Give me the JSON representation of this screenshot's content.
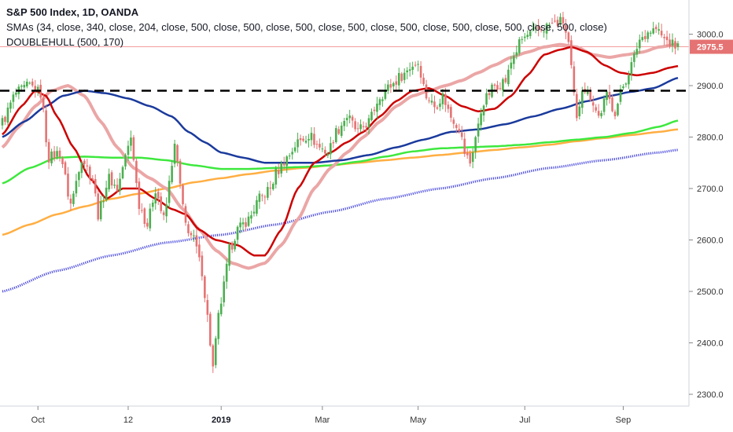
{
  "legend": {
    "title": "S&P 500 Index, 1D, OANDA",
    "line2": "SMAs (34, close, 340, close, 204, close, 500, close, 500, close, 500, close, 500, close, 500, close, 500, close, 500, close, 500, close)",
    "line3": "DOUBLEHULL (500, 170)"
  },
  "colors": {
    "up": "#4caf50",
    "down": "#e57373",
    "sma_red": "#cc0000",
    "sma_pink": "#eba6a6",
    "sma_navy": "#1a3a9c",
    "sma_green": "#3ee83e",
    "sma_orange": "#ffae42",
    "hull_blue": "#4a4adb",
    "price_line": "#f28c8c",
    "last_label_bg": "#e57373"
  },
  "chart_data": {
    "type": "candlestick",
    "y_axis_ticks": [
      "3000.0",
      "2900.0",
      "2800.0",
      "2700.0",
      "2600.0",
      "2500.0",
      "2400.0",
      "2300.0"
    ],
    "ylim": [
      2285,
      3050
    ],
    "x_axis_ticks": [
      {
        "label": "Oct",
        "index": 13,
        "bold": false
      },
      {
        "label": "12",
        "index": 46,
        "bold": false
      },
      {
        "label": "2019",
        "index": 80,
        "bold": true
      },
      {
        "label": "Mar",
        "index": 117,
        "bold": false
      },
      {
        "label": "May",
        "index": 152,
        "bold": false
      },
      {
        "label": "Jul",
        "index": 191,
        "bold": false
      },
      {
        "label": "Sep",
        "index": 227,
        "bold": false
      }
    ],
    "last_price": "2975.5",
    "support_level": 2890,
    "anchors": [
      [
        0,
        2830
      ],
      [
        5,
        2885
      ],
      [
        10,
        2900
      ],
      [
        14,
        2885
      ],
      [
        17,
        2760
      ],
      [
        21,
        2770
      ],
      [
        25,
        2670
      ],
      [
        29,
        2760
      ],
      [
        33,
        2720
      ],
      [
        35,
        2650
      ],
      [
        39,
        2720
      ],
      [
        42,
        2700
      ],
      [
        45,
        2760
      ],
      [
        47,
        2800
      ],
      [
        50,
        2670
      ],
      [
        53,
        2630
      ],
      [
        56,
        2700
      ],
      [
        59,
        2640
      ],
      [
        63,
        2780
      ],
      [
        67,
        2630
      ],
      [
        70,
        2600
      ],
      [
        73,
        2540
      ],
      [
        75,
        2450
      ],
      [
        77,
        2350
      ],
      [
        79,
        2450
      ],
      [
        81,
        2510
      ],
      [
        83,
        2580
      ],
      [
        86,
        2620
      ],
      [
        90,
        2640
      ],
      [
        94,
        2680
      ],
      [
        98,
        2700
      ],
      [
        100,
        2730
      ],
      [
        104,
        2760
      ],
      [
        108,
        2790
      ],
      [
        112,
        2805
      ],
      [
        116,
        2780
      ],
      [
        119,
        2770
      ],
      [
        122,
        2810
      ],
      [
        126,
        2840
      ],
      [
        130,
        2810
      ],
      [
        134,
        2830
      ],
      [
        138,
        2880
      ],
      [
        142,
        2900
      ],
      [
        146,
        2920
      ],
      [
        150,
        2940
      ],
      [
        152,
        2945
      ],
      [
        155,
        2880
      ],
      [
        158,
        2860
      ],
      [
        161,
        2880
      ],
      [
        164,
        2840
      ],
      [
        167,
        2820
      ],
      [
        169,
        2770
      ],
      [
        171,
        2750
      ],
      [
        173,
        2800
      ],
      [
        176,
        2870
      ],
      [
        180,
        2900
      ],
      [
        184,
        2910
      ],
      [
        187,
        2960
      ],
      [
        190,
        2990
      ],
      [
        193,
        3000
      ],
      [
        197,
        3010
      ],
      [
        201,
        3020
      ],
      [
        205,
        3025
      ],
      [
        207,
        2980
      ],
      [
        209,
        2880
      ],
      [
        210,
        2830
      ],
      [
        212,
        2900
      ],
      [
        215,
        2880
      ],
      [
        218,
        2840
      ],
      [
        221,
        2880
      ],
      [
        224,
        2850
      ],
      [
        227,
        2900
      ],
      [
        230,
        2940
      ],
      [
        233,
        2990
      ],
      [
        236,
        3005
      ],
      [
        239,
        3010
      ],
      [
        242,
        2990
      ],
      [
        245,
        2980
      ],
      [
        247,
        2975.5
      ]
    ],
    "sma_red_anchors": [
      [
        0,
        2805
      ],
      [
        7,
        2860
      ],
      [
        12,
        2890
      ],
      [
        16,
        2880
      ],
      [
        20,
        2840
      ],
      [
        26,
        2780
      ],
      [
        32,
        2720
      ],
      [
        38,
        2680
      ],
      [
        44,
        2700
      ],
      [
        50,
        2700
      ],
      [
        56,
        2680
      ],
      [
        62,
        2660
      ],
      [
        67,
        2650
      ],
      [
        72,
        2620
      ],
      [
        78,
        2600
      ],
      [
        86,
        2590
      ],
      [
        92,
        2570
      ],
      [
        96,
        2570
      ],
      [
        102,
        2620
      ],
      [
        108,
        2700
      ],
      [
        114,
        2750
      ],
      [
        120,
        2770
      ],
      [
        126,
        2790
      ],
      [
        132,
        2810
      ],
      [
        138,
        2840
      ],
      [
        144,
        2870
      ],
      [
        150,
        2890
      ],
      [
        156,
        2895
      ],
      [
        162,
        2880
      ],
      [
        168,
        2860
      ],
      [
        174,
        2850
      ],
      [
        180,
        2855
      ],
      [
        186,
        2880
      ],
      [
        192,
        2920
      ],
      [
        198,
        2960
      ],
      [
        204,
        2970
      ],
      [
        208,
        2975
      ],
      [
        214,
        2965
      ],
      [
        220,
        2940
      ],
      [
        226,
        2925
      ],
      [
        232,
        2920
      ],
      [
        238,
        2925
      ],
      [
        244,
        2935
      ],
      [
        247,
        2938
      ]
    ],
    "sma_pink_anchors": [
      [
        0,
        2780
      ],
      [
        6,
        2820
      ],
      [
        12,
        2860
      ],
      [
        18,
        2890
      ],
      [
        24,
        2900
      ],
      [
        30,
        2880
      ],
      [
        36,
        2830
      ],
      [
        42,
        2780
      ],
      [
        48,
        2740
      ],
      [
        54,
        2720
      ],
      [
        60,
        2700
      ],
      [
        66,
        2660
      ],
      [
        72,
        2620
      ],
      [
        78,
        2580
      ],
      [
        84,
        2555
      ],
      [
        90,
        2545
      ],
      [
        96,
        2555
      ],
      [
        102,
        2590
      ],
      [
        108,
        2640
      ],
      [
        114,
        2700
      ],
      [
        120,
        2740
      ],
      [
        126,
        2770
      ],
      [
        132,
        2800
      ],
      [
        138,
        2830
      ],
      [
        144,
        2860
      ],
      [
        150,
        2880
      ],
      [
        156,
        2890
      ],
      [
        162,
        2900
      ],
      [
        168,
        2910
      ],
      [
        174,
        2925
      ],
      [
        180,
        2940
      ],
      [
        186,
        2955
      ],
      [
        192,
        2965
      ],
      [
        198,
        2975
      ],
      [
        204,
        2980
      ],
      [
        210,
        2975
      ],
      [
        216,
        2960
      ],
      [
        222,
        2955
      ],
      [
        228,
        2960
      ],
      [
        234,
        2965
      ],
      [
        240,
        2975
      ],
      [
        247,
        2980
      ]
    ],
    "sma_navy_anchors": [
      [
        0,
        2800
      ],
      [
        8,
        2830
      ],
      [
        16,
        2860
      ],
      [
        22,
        2880
      ],
      [
        30,
        2890
      ],
      [
        38,
        2885
      ],
      [
        46,
        2875
      ],
      [
        54,
        2860
      ],
      [
        62,
        2840
      ],
      [
        68,
        2810
      ],
      [
        74,
        2790
      ],
      [
        80,
        2770
      ],
      [
        88,
        2760
      ],
      [
        96,
        2750
      ],
      [
        104,
        2750
      ],
      [
        114,
        2750
      ],
      [
        124,
        2755
      ],
      [
        134,
        2765
      ],
      [
        144,
        2780
      ],
      [
        154,
        2795
      ],
      [
        164,
        2810
      ],
      [
        174,
        2815
      ],
      [
        184,
        2825
      ],
      [
        194,
        2840
      ],
      [
        204,
        2855
      ],
      [
        214,
        2870
      ],
      [
        222,
        2880
      ],
      [
        230,
        2888
      ],
      [
        238,
        2895
      ],
      [
        247,
        2915
      ]
    ],
    "sma_green_anchors": [
      [
        0,
        2710
      ],
      [
        10,
        2740
      ],
      [
        20,
        2760
      ],
      [
        30,
        2762
      ],
      [
        40,
        2760
      ],
      [
        50,
        2760
      ],
      [
        60,
        2755
      ],
      [
        70,
        2745
      ],
      [
        80,
        2738
      ],
      [
        90,
        2738
      ],
      [
        100,
        2740
      ],
      [
        110,
        2742
      ],
      [
        120,
        2745
      ],
      [
        130,
        2752
      ],
      [
        140,
        2762
      ],
      [
        150,
        2772
      ],
      [
        160,
        2778
      ],
      [
        170,
        2780
      ],
      [
        180,
        2782
      ],
      [
        190,
        2785
      ],
      [
        200,
        2790
      ],
      [
        210,
        2795
      ],
      [
        220,
        2800
      ],
      [
        230,
        2808
      ],
      [
        240,
        2820
      ],
      [
        247,
        2832
      ]
    ],
    "sma_orange_anchors": [
      [
        0,
        2610
      ],
      [
        10,
        2630
      ],
      [
        20,
        2650
      ],
      [
        30,
        2665
      ],
      [
        40,
        2680
      ],
      [
        50,
        2690
      ],
      [
        60,
        2700
      ],
      [
        70,
        2712
      ],
      [
        80,
        2720
      ],
      [
        90,
        2728
      ],
      [
        100,
        2735
      ],
      [
        110,
        2740
      ],
      [
        120,
        2745
      ],
      [
        130,
        2750
      ],
      [
        140,
        2755
      ],
      [
        150,
        2760
      ],
      [
        160,
        2765
      ],
      [
        170,
        2770
      ],
      [
        180,
        2775
      ],
      [
        190,
        2780
      ],
      [
        200,
        2785
      ],
      [
        210,
        2792
      ],
      [
        220,
        2798
      ],
      [
        230,
        2804
      ],
      [
        240,
        2810
      ],
      [
        247,
        2815
      ]
    ],
    "hull_blue_anchors": [
      [
        0,
        2500
      ],
      [
        20,
        2540
      ],
      [
        40,
        2570
      ],
      [
        60,
        2595
      ],
      [
        80,
        2610
      ],
      [
        100,
        2630
      ],
      [
        120,
        2655
      ],
      [
        140,
        2680
      ],
      [
        160,
        2700
      ],
      [
        180,
        2720
      ],
      [
        200,
        2740
      ],
      [
        220,
        2755
      ],
      [
        240,
        2770
      ],
      [
        247,
        2775
      ]
    ]
  }
}
